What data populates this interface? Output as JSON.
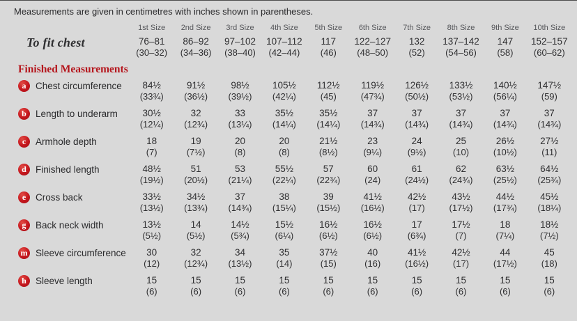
{
  "intro": "Measurements are given in centimetres with inches shown in parentheses.",
  "section_heading": "Finished Measurements",
  "colors": {
    "background": "#d9d9d9",
    "badge_red": "#c4161d",
    "heading_red": "#b5161d",
    "text": "#2f2f31",
    "size_header_gray": "#55565a"
  },
  "to_fit_chest": {
    "label": "To fit chest",
    "cm": [
      "76–81",
      "86–92",
      "97–102",
      "107–112",
      "117",
      "122–127",
      "132",
      "137–142",
      "147",
      "152–157"
    ],
    "in": [
      "(30–32)",
      "(34–36)",
      "(38–40)",
      "(42–44)",
      "(46)",
      "(48–50)",
      "(52)",
      "(54–56)",
      "(58)",
      "(60–62)"
    ]
  },
  "table": {
    "size_headers": [
      "1st Size",
      "2nd Size",
      "3rd Size",
      "4th Size",
      "5th Size",
      "6th Size",
      "7th Size",
      "8th Size",
      "9th Size",
      "10th Size"
    ],
    "rows": [
      {
        "badge": "a",
        "label": "Chest circumference",
        "cm": [
          "84½",
          "91½",
          "98½",
          "105½",
          "112½",
          "119½",
          "126½",
          "133½",
          "140½",
          "147½"
        ],
        "in": [
          "(33¾)",
          "(36½)",
          "(39½)",
          "(42¼)",
          "(45)",
          "(47¾)",
          "(50½)",
          "(53½)",
          "(56¼)",
          "(59)"
        ]
      },
      {
        "badge": "b",
        "label": "Length to underarm",
        "cm": [
          "30½",
          "32",
          "33",
          "35½",
          "35½",
          "37",
          "37",
          "37",
          "37",
          "37"
        ],
        "in": [
          "(12¼)",
          "(12¾)",
          "(13¼)",
          "(14¼)",
          "(14¼)",
          "(14¾)",
          "(14¾)",
          "(14¾)",
          "(14¾)",
          "(14¾)"
        ]
      },
      {
        "badge": "c",
        "label": "Armhole depth",
        "cm": [
          "18",
          "19",
          "20",
          "20",
          "21½",
          "23",
          "24",
          "25",
          "26½",
          "27½"
        ],
        "in": [
          "(7)",
          "(7½)",
          "(8)",
          "(8)",
          "(8½)",
          "(9¼)",
          "(9½)",
          "(10)",
          "(10½)",
          "(11)"
        ]
      },
      {
        "badge": "d",
        "label": "Finished length",
        "cm": [
          "48½",
          "51",
          "53",
          "55½",
          "57",
          "60",
          "61",
          "62",
          "63½",
          "64½"
        ],
        "in": [
          "(19½)",
          "(20½)",
          "(21¼)",
          "(22¼)",
          "(22¾)",
          "(24)",
          "(24½)",
          "(24¾)",
          "(25½)",
          "(25¾)"
        ]
      },
      {
        "badge": "e",
        "label": "Cross back",
        "cm": [
          "33½",
          "34½",
          "37",
          "38",
          "39",
          "41½",
          "42½",
          "43½",
          "44½",
          "45½"
        ],
        "in": [
          "(13½)",
          "(13¾)",
          "(14¾)",
          "(15¼)",
          "(15½)",
          "(16½)",
          "(17)",
          "(17½)",
          "(17¾)",
          "(18¼)"
        ]
      },
      {
        "badge": "g",
        "label": "Back neck width",
        "cm": [
          "13½",
          "14",
          "14½",
          "15½",
          "16½",
          "16½",
          "17",
          "17½",
          "18",
          "18½"
        ],
        "in": [
          "(5½)",
          "(5½)",
          "(5¾)",
          "(6¼)",
          "(6½)",
          "(6½)",
          "(6¾)",
          "(7)",
          "(7¼)",
          "(7½)"
        ]
      },
      {
        "badge": "m",
        "label": "Sleeve circumference",
        "cm": [
          "30",
          "32",
          "34",
          "35",
          "37½",
          "40",
          "41½",
          "42½",
          "44",
          "45"
        ],
        "in": [
          "(12)",
          "(12¾)",
          "(13½)",
          "(14)",
          "(15)",
          "(16)",
          "(16½)",
          "(17)",
          "(17½)",
          "(18)"
        ]
      },
      {
        "badge": "h",
        "label": "Sleeve length",
        "cm": [
          "15",
          "15",
          "15",
          "15",
          "15",
          "15",
          "15",
          "15",
          "15",
          "15"
        ],
        "in": [
          "(6)",
          "(6)",
          "(6)",
          "(6)",
          "(6)",
          "(6)",
          "(6)",
          "(6)",
          "(6)",
          "(6)"
        ]
      }
    ]
  }
}
